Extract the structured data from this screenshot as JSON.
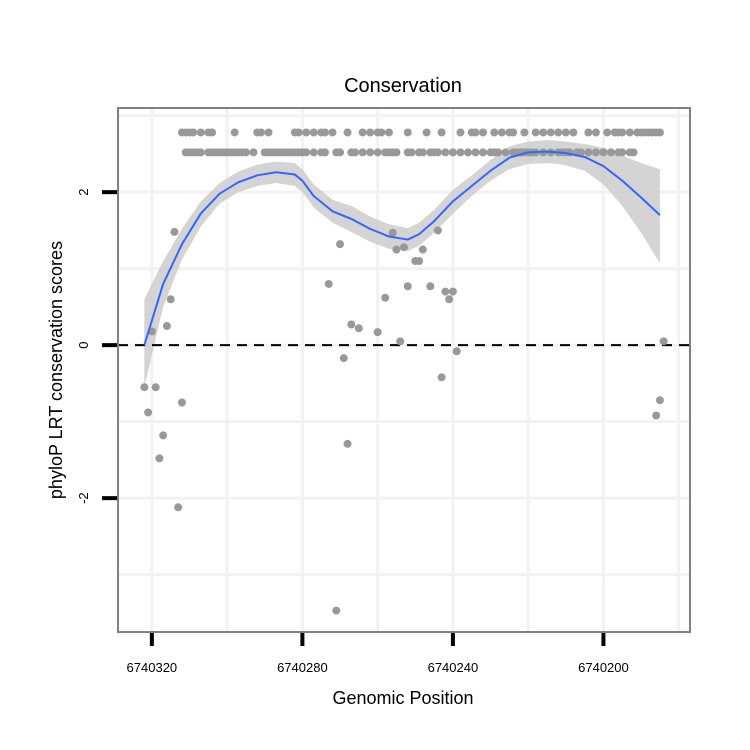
{
  "chart_data": {
    "type": "scatter",
    "title": "Conservation",
    "xlabel": "Genomic Position",
    "ylabel": "phyloP LRT conservation scores",
    "x_reversed": true,
    "xlim": [
      6740177,
      6740329
    ],
    "ylim": [
      -3.75,
      3.1
    ],
    "x_ticks": [
      6740320,
      6740280,
      6740240,
      6740200
    ],
    "x_tick_labels": [
      "6740320",
      "6740280",
      "6740240",
      "6740200"
    ],
    "y_ticks": [
      -2,
      0,
      2
    ],
    "y_tick_labels": [
      "-2",
      "0",
      "2"
    ],
    "grid": true,
    "reference_line": {
      "y": 0,
      "style": "dashed"
    },
    "colors": {
      "points": "#999999",
      "smooth_line": "#3366ff",
      "confidence_band": "#cccccc",
      "panel_border": "#808080",
      "grid": "#f2f2f2"
    },
    "points": [
      {
        "x": 6740322,
        "y": -0.55
      },
      {
        "x": 6740321,
        "y": -0.88
      },
      {
        "x": 6740320,
        "y": 0.18
      },
      {
        "x": 6740319,
        "y": -0.55
      },
      {
        "x": 6740318,
        "y": -1.48
      },
      {
        "x": 6740317,
        "y": -1.18
      },
      {
        "x": 6740316,
        "y": 0.25
      },
      {
        "x": 6740315,
        "y": 0.6
      },
      {
        "x": 6740314,
        "y": 1.48
      },
      {
        "x": 6740313,
        "y": -2.12
      },
      {
        "x": 6740312,
        "y": -0.75
      },
      {
        "x": 6740273,
        "y": 0.8
      },
      {
        "x": 6740271,
        "y": -3.47
      },
      {
        "x": 6740270,
        "y": 1.32
      },
      {
        "x": 6740269,
        "y": -0.17
      },
      {
        "x": 6740268,
        "y": -1.29
      },
      {
        "x": 6740267,
        "y": 0.27
      },
      {
        "x": 6740265,
        "y": 0.22
      },
      {
        "x": 6740260,
        "y": 0.17
      },
      {
        "x": 6740258,
        "y": 0.62
      },
      {
        "x": 6740256,
        "y": 1.47
      },
      {
        "x": 6740255,
        "y": 1.25
      },
      {
        "x": 6740254,
        "y": 0.05
      },
      {
        "x": 6740253,
        "y": 1.28
      },
      {
        "x": 6740252,
        "y": 0.77
      },
      {
        "x": 6740250,
        "y": 1.1
      },
      {
        "x": 6740249,
        "y": 1.1
      },
      {
        "x": 6740248,
        "y": 1.25
      },
      {
        "x": 6740246,
        "y": 0.77
      },
      {
        "x": 6740244,
        "y": 1.5
      },
      {
        "x": 6740243,
        "y": -0.42
      },
      {
        "x": 6740242,
        "y": 0.7
      },
      {
        "x": 6740241,
        "y": 0.6
      },
      {
        "x": 6740240,
        "y": 0.7
      },
      {
        "x": 6740239,
        "y": -0.08
      },
      {
        "x": 6740186,
        "y": -0.92
      },
      {
        "x": 6740185,
        "y": -0.72
      },
      {
        "x": 6740184,
        "y": 0.05
      },
      {
        "x": 6740312,
        "y": 2.78
      },
      {
        "x": 6740311,
        "y": 2.78
      },
      {
        "x": 6740310,
        "y": 2.78
      },
      {
        "x": 6740309,
        "y": 2.78
      },
      {
        "x": 6740307,
        "y": 2.78
      },
      {
        "x": 6740305,
        "y": 2.78
      },
      {
        "x": 6740304,
        "y": 2.78
      },
      {
        "x": 6740298,
        "y": 2.78
      },
      {
        "x": 6740292,
        "y": 2.78
      },
      {
        "x": 6740291,
        "y": 2.78
      },
      {
        "x": 6740289,
        "y": 2.78
      },
      {
        "x": 6740282,
        "y": 2.78
      },
      {
        "x": 6740281,
        "y": 2.78
      },
      {
        "x": 6740279,
        "y": 2.78
      },
      {
        "x": 6740277,
        "y": 2.78
      },
      {
        "x": 6740275,
        "y": 2.78
      },
      {
        "x": 6740274,
        "y": 2.78
      },
      {
        "x": 6740272,
        "y": 2.78
      },
      {
        "x": 6740268,
        "y": 2.78
      },
      {
        "x": 6740264,
        "y": 2.78
      },
      {
        "x": 6740262,
        "y": 2.78
      },
      {
        "x": 6740260,
        "y": 2.78
      },
      {
        "x": 6740259,
        "y": 2.78
      },
      {
        "x": 6740257,
        "y": 2.78
      },
      {
        "x": 6740252,
        "y": 2.78
      },
      {
        "x": 6740247,
        "y": 2.78
      },
      {
        "x": 6740243,
        "y": 2.78
      },
      {
        "x": 6740238,
        "y": 2.78
      },
      {
        "x": 6740235,
        "y": 2.78
      },
      {
        "x": 6740234,
        "y": 2.78
      },
      {
        "x": 6740232,
        "y": 2.78
      },
      {
        "x": 6740229,
        "y": 2.78
      },
      {
        "x": 6740227,
        "y": 2.78
      },
      {
        "x": 6740225,
        "y": 2.78
      },
      {
        "x": 6740224,
        "y": 2.78
      },
      {
        "x": 6740221,
        "y": 2.78
      },
      {
        "x": 6740218,
        "y": 2.78
      },
      {
        "x": 6740216,
        "y": 2.78
      },
      {
        "x": 6740214,
        "y": 2.78
      },
      {
        "x": 6740212,
        "y": 2.78
      },
      {
        "x": 6740210,
        "y": 2.78
      },
      {
        "x": 6740208,
        "y": 2.78
      },
      {
        "x": 6740204,
        "y": 2.78
      },
      {
        "x": 6740202,
        "y": 2.78
      },
      {
        "x": 6740199,
        "y": 2.78
      },
      {
        "x": 6740197,
        "y": 2.78
      },
      {
        "x": 6740196,
        "y": 2.78
      },
      {
        "x": 6740195,
        "y": 2.78
      },
      {
        "x": 6740193,
        "y": 2.78
      },
      {
        "x": 6740191,
        "y": 2.78
      },
      {
        "x": 6740190,
        "y": 2.78
      },
      {
        "x": 6740189,
        "y": 2.78
      },
      {
        "x": 6740188,
        "y": 2.78
      },
      {
        "x": 6740187,
        "y": 2.78
      },
      {
        "x": 6740186,
        "y": 2.78
      },
      {
        "x": 6740185,
        "y": 2.78
      },
      {
        "x": 6740311,
        "y": 2.52
      },
      {
        "x": 6740310,
        "y": 2.52
      },
      {
        "x": 6740309,
        "y": 2.52
      },
      {
        "x": 6740308,
        "y": 2.52
      },
      {
        "x": 6740307,
        "y": 2.52
      },
      {
        "x": 6740305,
        "y": 2.52
      },
      {
        "x": 6740304,
        "y": 2.52
      },
      {
        "x": 6740303,
        "y": 2.52
      },
      {
        "x": 6740302,
        "y": 2.52
      },
      {
        "x": 6740301,
        "y": 2.52
      },
      {
        "x": 6740300,
        "y": 2.52
      },
      {
        "x": 6740299,
        "y": 2.52
      },
      {
        "x": 6740298,
        "y": 2.52
      },
      {
        "x": 6740297,
        "y": 2.52
      },
      {
        "x": 6740296,
        "y": 2.52
      },
      {
        "x": 6740295,
        "y": 2.52
      },
      {
        "x": 6740293,
        "y": 2.52
      },
      {
        "x": 6740290,
        "y": 2.52
      },
      {
        "x": 6740289,
        "y": 2.52
      },
      {
        "x": 6740288,
        "y": 2.52
      },
      {
        "x": 6740287,
        "y": 2.52
      },
      {
        "x": 6740286,
        "y": 2.52
      },
      {
        "x": 6740285,
        "y": 2.52
      },
      {
        "x": 6740284,
        "y": 2.52
      },
      {
        "x": 6740283,
        "y": 2.52
      },
      {
        "x": 6740282,
        "y": 2.52
      },
      {
        "x": 6740281,
        "y": 2.52
      },
      {
        "x": 6740280,
        "y": 2.52
      },
      {
        "x": 6740279,
        "y": 2.52
      },
      {
        "x": 6740277,
        "y": 2.52
      },
      {
        "x": 6740275,
        "y": 2.52
      },
      {
        "x": 6740274,
        "y": 2.52
      },
      {
        "x": 6740271,
        "y": 2.52
      },
      {
        "x": 6740270,
        "y": 2.52
      },
      {
        "x": 6740267,
        "y": 2.52
      },
      {
        "x": 6740266,
        "y": 2.52
      },
      {
        "x": 6740264,
        "y": 2.52
      },
      {
        "x": 6740262,
        "y": 2.52
      },
      {
        "x": 6740260,
        "y": 2.52
      },
      {
        "x": 6740258,
        "y": 2.52
      },
      {
        "x": 6740257,
        "y": 2.52
      },
      {
        "x": 6740256,
        "y": 2.52
      },
      {
        "x": 6740255,
        "y": 2.52
      },
      {
        "x": 6740252,
        "y": 2.52
      },
      {
        "x": 6740251,
        "y": 2.52
      },
      {
        "x": 6740249,
        "y": 2.52
      },
      {
        "x": 6740248,
        "y": 2.52
      },
      {
        "x": 6740246,
        "y": 2.52
      },
      {
        "x": 6740245,
        "y": 2.52
      },
      {
        "x": 6740244,
        "y": 2.52
      },
      {
        "x": 6740242,
        "y": 2.52
      },
      {
        "x": 6740240,
        "y": 2.52
      },
      {
        "x": 6740238,
        "y": 2.52
      },
      {
        "x": 6740236,
        "y": 2.52
      },
      {
        "x": 6740234,
        "y": 2.52
      },
      {
        "x": 6740232,
        "y": 2.52
      },
      {
        "x": 6740230,
        "y": 2.52
      },
      {
        "x": 6740229,
        "y": 2.52
      },
      {
        "x": 6740228,
        "y": 2.52
      },
      {
        "x": 6740226,
        "y": 2.52
      },
      {
        "x": 6740224,
        "y": 2.52
      },
      {
        "x": 6740223,
        "y": 2.52
      },
      {
        "x": 6740222,
        "y": 2.52
      },
      {
        "x": 6740221,
        "y": 2.52
      },
      {
        "x": 6740220,
        "y": 2.52
      },
      {
        "x": 6740219,
        "y": 2.52
      },
      {
        "x": 6740218,
        "y": 2.52
      },
      {
        "x": 6740216,
        "y": 2.52
      },
      {
        "x": 6740214,
        "y": 2.52
      },
      {
        "x": 6740212,
        "y": 2.52
      },
      {
        "x": 6740211,
        "y": 2.52
      },
      {
        "x": 6740210,
        "y": 2.52
      },
      {
        "x": 6740209,
        "y": 2.52
      },
      {
        "x": 6740207,
        "y": 2.52
      },
      {
        "x": 6740206,
        "y": 2.52
      },
      {
        "x": 6740204,
        "y": 2.52
      },
      {
        "x": 6740202,
        "y": 2.52
      },
      {
        "x": 6740200,
        "y": 2.52
      },
      {
        "x": 6740198,
        "y": 2.52
      },
      {
        "x": 6740196,
        "y": 2.52
      },
      {
        "x": 6740195,
        "y": 2.52
      },
      {
        "x": 6740193,
        "y": 2.52
      },
      {
        "x": 6740192,
        "y": 2.52
      }
    ],
    "smooth": {
      "x": [
        6740322,
        6740317,
        6740312,
        6740307,
        6740302,
        6740297,
        6740292,
        6740287,
        6740282,
        6740280,
        6740277,
        6740272,
        6740267,
        6740262,
        6740257,
        6740252,
        6740249,
        6740245,
        6740240,
        6740235,
        6740230,
        6740225,
        6740220,
        6740215,
        6740212,
        6740210,
        6740205,
        6740200,
        6740195,
        6740190,
        6740185
      ],
      "y": [
        0.0,
        0.8,
        1.32,
        1.72,
        1.98,
        2.13,
        2.22,
        2.26,
        2.23,
        2.15,
        1.95,
        1.75,
        1.65,
        1.52,
        1.42,
        1.38,
        1.45,
        1.62,
        1.88,
        2.08,
        2.28,
        2.45,
        2.52,
        2.53,
        2.52,
        2.51,
        2.46,
        2.34,
        2.15,
        1.93,
        1.7
      ],
      "lower": [
        -0.55,
        0.5,
        1.12,
        1.55,
        1.85,
        2.0,
        2.08,
        2.12,
        2.08,
        2.0,
        1.8,
        1.6,
        1.48,
        1.35,
        1.26,
        1.23,
        1.3,
        1.47,
        1.72,
        1.95,
        2.15,
        2.3,
        2.37,
        2.38,
        2.37,
        2.35,
        2.28,
        2.1,
        1.82,
        1.47,
        1.07
      ],
      "upper": [
        0.6,
        1.1,
        1.52,
        1.88,
        2.12,
        2.27,
        2.36,
        2.4,
        2.38,
        2.3,
        2.1,
        1.9,
        1.82,
        1.68,
        1.58,
        1.53,
        1.6,
        1.77,
        2.03,
        2.22,
        2.42,
        2.6,
        2.66,
        2.68,
        2.67,
        2.66,
        2.63,
        2.58,
        2.48,
        2.38,
        2.3
      ]
    }
  }
}
